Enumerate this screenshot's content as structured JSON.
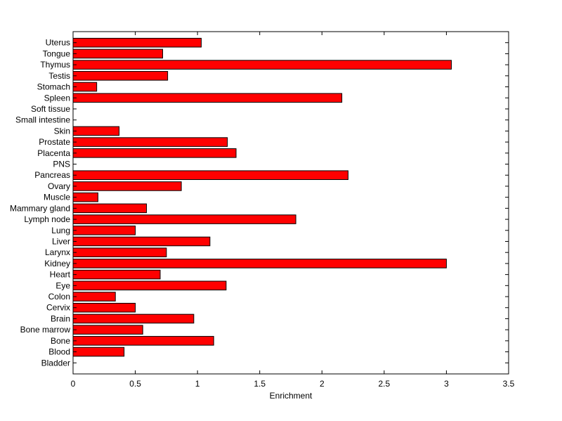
{
  "chart_data": {
    "type": "bar",
    "orientation": "horizontal",
    "title": "",
    "xlabel": "Enrichment",
    "ylabel": "",
    "xlim": [
      0,
      3.5
    ],
    "xticks": [
      "0",
      "0.5",
      "1",
      "1.5",
      "2",
      "2.5",
      "3",
      "3.5"
    ],
    "grid": false,
    "bar_color": "#ff0000",
    "edge_color": "#000000",
    "categories": [
      "Bladder",
      "Blood",
      "Bone",
      "Bone marrow",
      "Brain",
      "Cervix",
      "Colon",
      "Eye",
      "Heart",
      "Kidney",
      "Larynx",
      "Liver",
      "Lung",
      "Lymph node",
      "Mammary gland",
      "Muscle",
      "Ovary",
      "Pancreas",
      "PNS",
      "Placenta",
      "Prostate",
      "Skin",
      "Small intestine",
      "Soft tissue",
      "Spleen",
      "Stomach",
      "Testis",
      "Thymus",
      "Tongue",
      "Uterus"
    ],
    "values": [
      0,
      0.41,
      1.13,
      0.56,
      0.97,
      0.5,
      0.34,
      1.23,
      0.7,
      3.0,
      0.75,
      1.1,
      0.5,
      1.79,
      0.59,
      0.2,
      0.87,
      2.21,
      0,
      1.31,
      1.24,
      0.37,
      0,
      0,
      2.16,
      0.19,
      0.76,
      3.04,
      0.72,
      1.03
    ]
  }
}
